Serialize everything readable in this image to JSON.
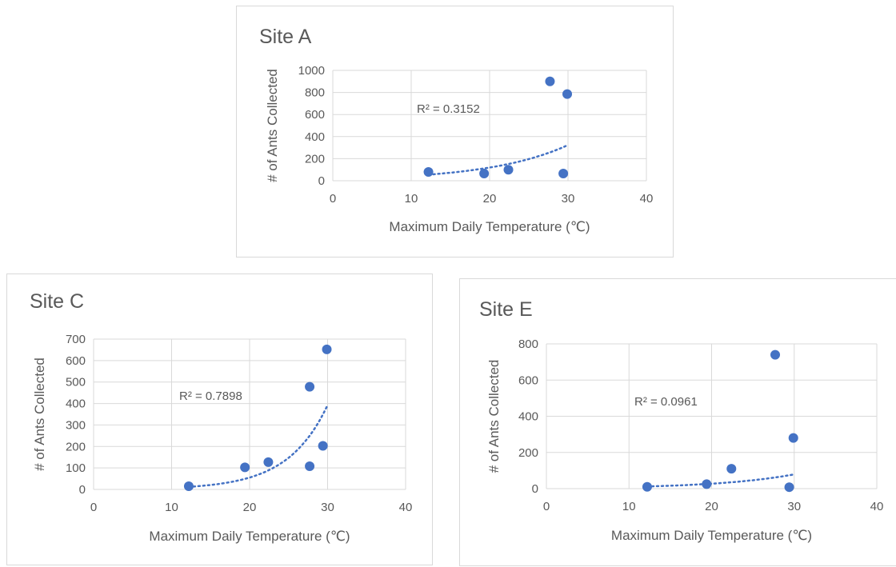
{
  "chart_data": [
    {
      "type": "scatter",
      "title": "Site A",
      "xlabel": "Maximum Daily Temperature (℃)",
      "ylabel": "# of Ants Collected",
      "xlim": [
        0,
        40
      ],
      "ylim": [
        0,
        1000
      ],
      "xticks": [
        "0",
        "10",
        "20",
        "30",
        "40"
      ],
      "yticks": [
        "0",
        "200",
        "400",
        "600",
        "800",
        "1000"
      ],
      "grid": true,
      "points": [
        {
          "x": 12.2,
          "y": 80
        },
        {
          "x": 19.3,
          "y": 65
        },
        {
          "x": 22.4,
          "y": 100
        },
        {
          "x": 27.7,
          "y": 900
        },
        {
          "x": 29.4,
          "y": 65
        },
        {
          "x": 29.9,
          "y": 785
        }
      ],
      "trendline": {
        "type": "exponential",
        "x": [
          12.2,
          29.9
        ],
        "y": [
          55,
          320
        ],
        "r2_label": "R² = 0.3152"
      },
      "color": "#4472c4"
    },
    {
      "type": "scatter",
      "title": "Site C",
      "xlabel": "Maximum Daily Temperature (℃)",
      "ylabel": "# of Ants Collected",
      "xlim": [
        0,
        40
      ],
      "ylim": [
        0,
        700
      ],
      "xticks": [
        "0",
        "10",
        "20",
        "30",
        "40"
      ],
      "yticks": [
        "0",
        "100",
        "200",
        "300",
        "400",
        "500",
        "600",
        "700"
      ],
      "grid": true,
      "points": [
        {
          "x": 12.2,
          "y": 15
        },
        {
          "x": 19.4,
          "y": 103
        },
        {
          "x": 22.4,
          "y": 127
        },
        {
          "x": 27.7,
          "y": 478
        },
        {
          "x": 27.7,
          "y": 108
        },
        {
          "x": 29.4,
          "y": 203
        },
        {
          "x": 29.9,
          "y": 652
        }
      ],
      "trendline": {
        "type": "exponential",
        "x": [
          12.2,
          29.9
        ],
        "y": [
          12,
          385
        ],
        "r2_label": "R² = 0.7898"
      },
      "color": "#4472c4"
    },
    {
      "type": "scatter",
      "title": "Site E",
      "xlabel": "Maximum Daily Temperature (℃)",
      "ylabel": "# of Ants Collected",
      "xlim": [
        0,
        40
      ],
      "ylim": [
        0,
        800
      ],
      "xticks": [
        "0",
        "10",
        "20",
        "30",
        "40"
      ],
      "yticks": [
        "0",
        "200",
        "400",
        "600",
        "800"
      ],
      "grid": true,
      "points": [
        {
          "x": 12.2,
          "y": 10
        },
        {
          "x": 19.4,
          "y": 25
        },
        {
          "x": 22.4,
          "y": 110
        },
        {
          "x": 27.7,
          "y": 740
        },
        {
          "x": 29.4,
          "y": 8
        },
        {
          "x": 29.9,
          "y": 280
        }
      ],
      "trendline": {
        "type": "exponential",
        "x": [
          12.2,
          29.9
        ],
        "y": [
          12,
          78
        ],
        "r2_label": "R² = 0.0961"
      },
      "color": "#4472c4"
    }
  ]
}
